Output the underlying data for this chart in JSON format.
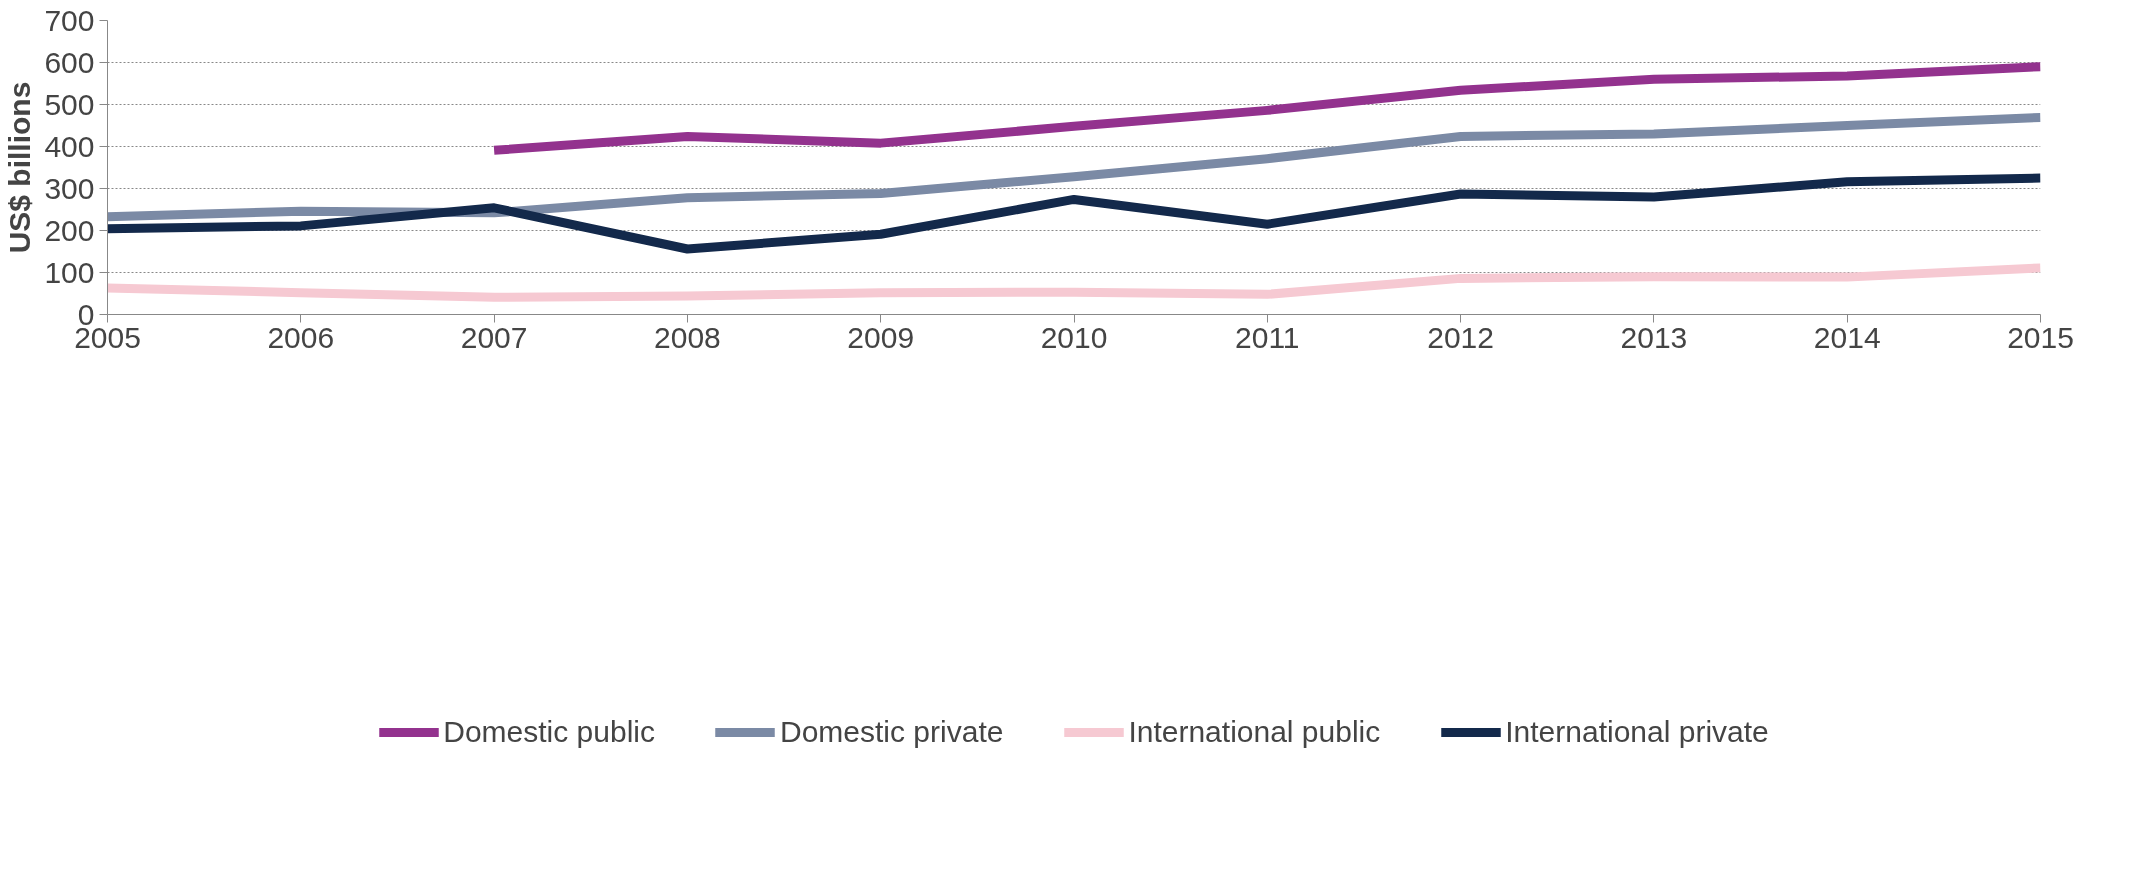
{
  "chart_data": {
    "type": "line",
    "ylabel": "US$ billions",
    "x": [
      2005,
      2006,
      2007,
      2008,
      2009,
      2010,
      2011,
      2012,
      2013,
      2014,
      2015
    ],
    "xlim": [
      2005,
      2015
    ],
    "xticks": [
      2005,
      2006,
      2007,
      2008,
      2009,
      2010,
      2011,
      2012,
      2013,
      2014,
      2015
    ],
    "ylim": [
      0,
      700
    ],
    "yticks": [
      0,
      100,
      200,
      300,
      400,
      500,
      600,
      700
    ],
    "grid": "y",
    "legend": "bottom",
    "marker": "none",
    "line_style": "solid",
    "series": [
      {
        "name": "Domestic public",
        "color": "#93328e",
        "values": [
          null,
          null,
          391,
          424,
          408,
          448,
          486,
          534,
          560,
          568,
          590
        ]
      },
      {
        "name": "Domestic private",
        "color": "#7b8aa5",
        "values": [
          233,
          246,
          242,
          278,
          288,
          328,
          371,
          424,
          430,
          450,
          469
        ]
      },
      {
        "name": "International public",
        "color": "#f6c9d2",
        "values": [
          63,
          52,
          41,
          44,
          52,
          53,
          48,
          86,
          90,
          89,
          111
        ]
      },
      {
        "name": "International private",
        "color": "#13294b",
        "values": [
          204,
          211,
          254,
          156,
          191,
          274,
          215,
          287,
          280,
          316,
          325
        ]
      }
    ]
  }
}
